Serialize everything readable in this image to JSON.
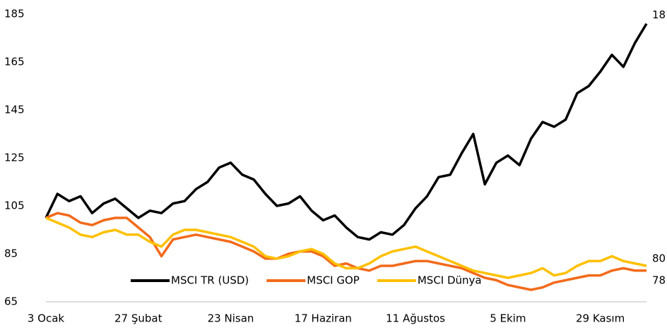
{
  "chart_data": {
    "type": "line",
    "categories": [
      "3 Ocak",
      null,
      null,
      null,
      null,
      null,
      null,
      null,
      "27 Şubat",
      null,
      null,
      null,
      null,
      null,
      null,
      null,
      "23 Nisan",
      null,
      null,
      null,
      null,
      null,
      null,
      null,
      "17 Haziran",
      null,
      null,
      null,
      null,
      null,
      null,
      null,
      "11 Ağustos",
      null,
      null,
      null,
      null,
      null,
      null,
      null,
      "5 Ekim",
      null,
      null,
      null,
      null,
      null,
      null,
      null,
      "29 Kasım",
      null,
      null,
      null,
      null
    ],
    "series": [
      {
        "name": "MSCI TR (USD)",
        "color": "#000000",
        "values": [
          100,
          110,
          107,
          109,
          102,
          106,
          108,
          104,
          100,
          103,
          102,
          106,
          107,
          112,
          115,
          121,
          123,
          118,
          116,
          110,
          105,
          106,
          109,
          103,
          99,
          101,
          96,
          92,
          91,
          94,
          93,
          97,
          104,
          109,
          117,
          118,
          127,
          135,
          114,
          123,
          126,
          122,
          133,
          140,
          138,
          141,
          152,
          155,
          161,
          168,
          163,
          173,
          181
        ]
      },
      {
        "name": "MSCI GOP",
        "color": "#f26a1b",
        "values": [
          100,
          102,
          101,
          98,
          97,
          99,
          100,
          100,
          96,
          92,
          84,
          91,
          92,
          93,
          92,
          91,
          90,
          88,
          86,
          83,
          83,
          85,
          86,
          86,
          84,
          80,
          81,
          79,
          78,
          80,
          80,
          81,
          82,
          82,
          81,
          80,
          79,
          77,
          75,
          74,
          72,
          71,
          70,
          71,
          73,
          74,
          75,
          76,
          76,
          78,
          79,
          78,
          78
        ]
      },
      {
        "name": "MSCI Dünya",
        "color": "#ffc000",
        "values": [
          100,
          98,
          96,
          93,
          92,
          94,
          95,
          93,
          93,
          90,
          88,
          93,
          95,
          95,
          94,
          93,
          92,
          90,
          88,
          84,
          83,
          84,
          86,
          87,
          85,
          81,
          79,
          79,
          81,
          84,
          86,
          87,
          88,
          86,
          84,
          82,
          80,
          78,
          77,
          76,
          75,
          76,
          77,
          79,
          76,
          77,
          80,
          82,
          82,
          84,
          82,
          81,
          80
        ]
      }
    ],
    "ylim": [
      65,
      185
    ],
    "yticks": [
      65,
      85,
      105,
      125,
      145,
      165,
      185
    ],
    "grid": false,
    "legend": "bottom"
  }
}
